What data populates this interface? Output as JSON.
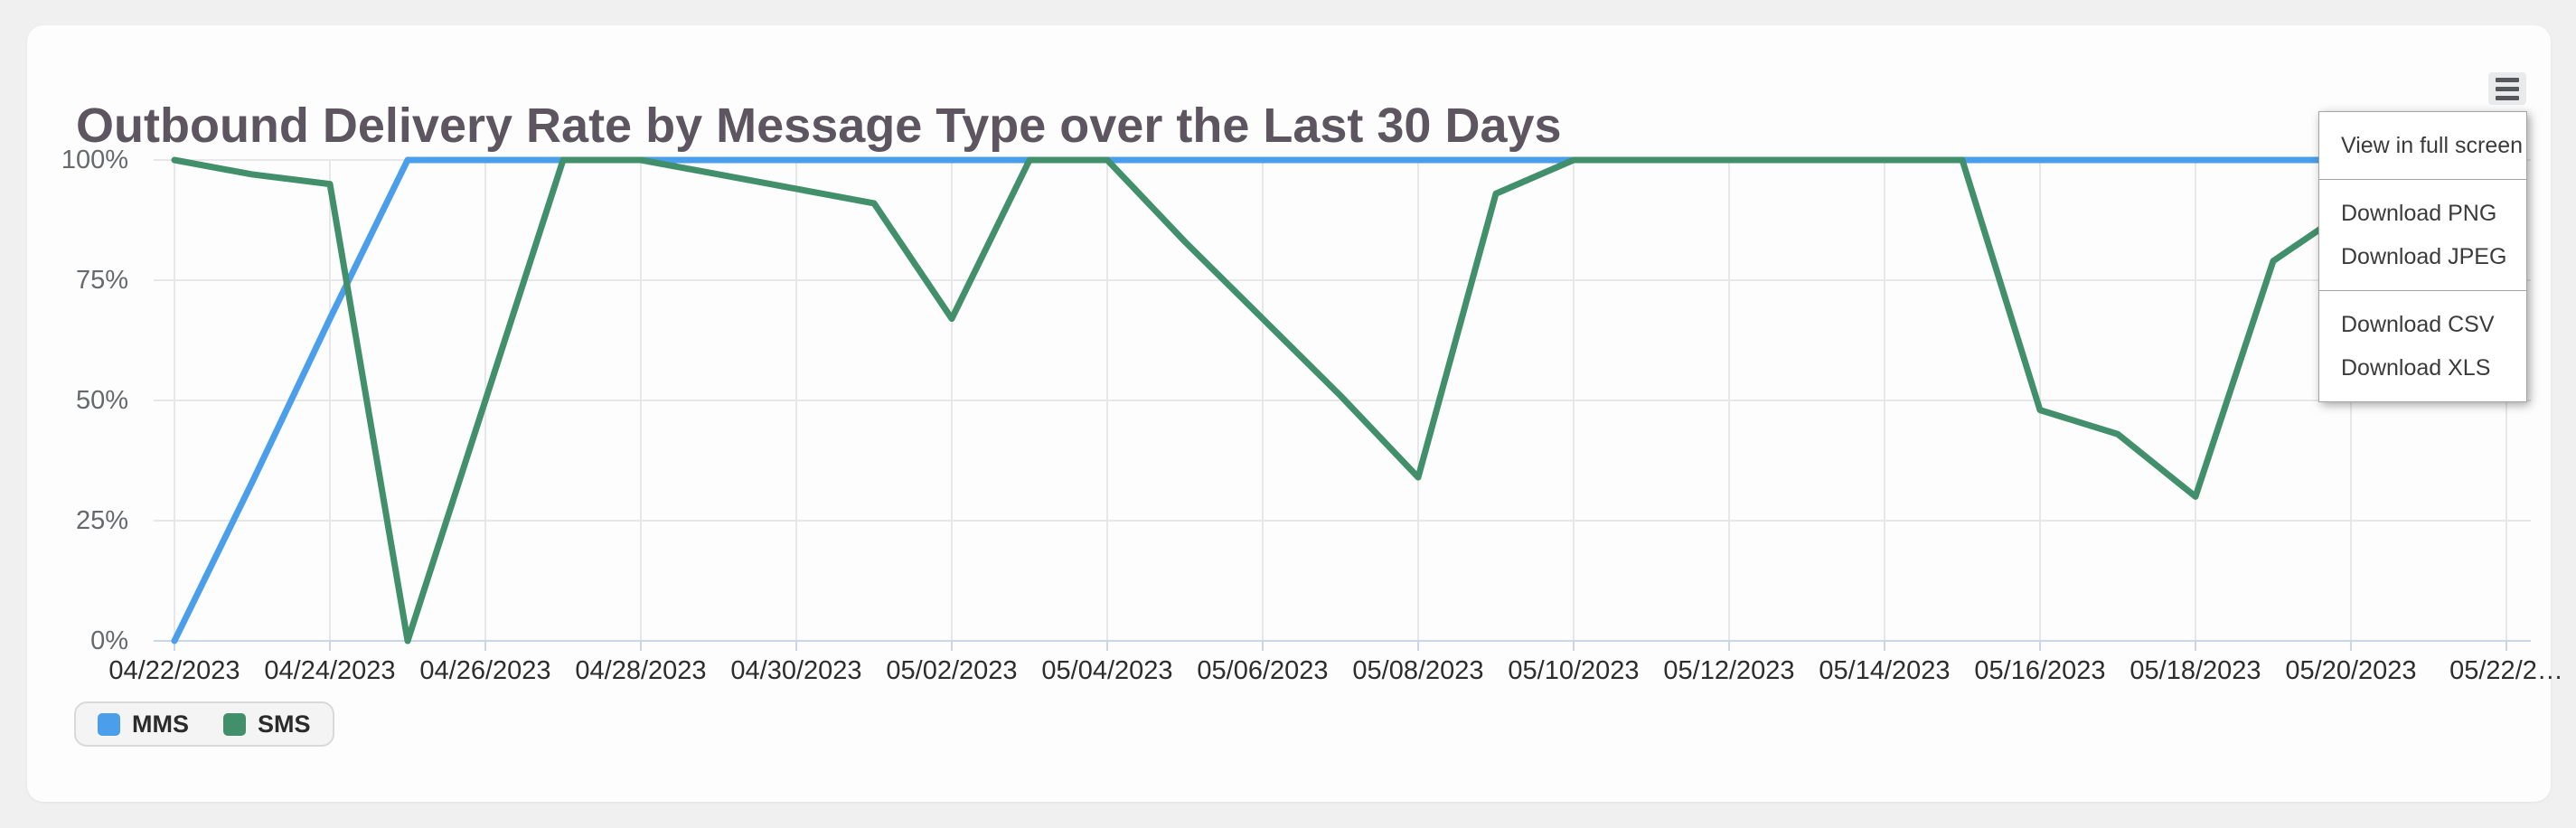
{
  "page": {
    "background_color": "#f0f0f1",
    "card_background_color": "#fdfdfd"
  },
  "header": {
    "title": "Outbound Delivery Rate by Message Type over the Last 30 Days",
    "title_color": "#5d5660"
  },
  "export_menu": {
    "button_icon": "hamburger-icon",
    "sections": [
      [
        "View in full screen"
      ],
      [
        "Download PNG",
        "Download JPEG"
      ],
      [
        "Download CSV",
        "Download XLS"
      ]
    ]
  },
  "legend": {
    "items": [
      {
        "label": "MMS",
        "color": "#4b9ee9"
      },
      {
        "label": "SMS",
        "color": "#42906b"
      }
    ]
  },
  "chart_data": {
    "type": "line",
    "title": "Outbound Delivery Rate by Message Type over the Last 30 Days",
    "xlabel": "",
    "ylabel": "",
    "ylim": [
      0,
      100
    ],
    "grid": true,
    "legend_position": "bottom-left",
    "y_ticks": [
      {
        "value": 0,
        "label": "0%"
      },
      {
        "value": 25,
        "label": "25%"
      },
      {
        "value": 50,
        "label": "50%"
      },
      {
        "value": 75,
        "label": "75%"
      },
      {
        "value": 100,
        "label": "100%"
      }
    ],
    "x_tick_labels": [
      "04/22/2023",
      "04/24/2023",
      "04/26/2023",
      "04/28/2023",
      "04/30/2023",
      "05/02/2023",
      "05/04/2023",
      "05/06/2023",
      "05/08/2023",
      "05/10/2023",
      "05/12/2023",
      "05/14/2023",
      "05/16/2023",
      "05/18/2023",
      "05/20/2023",
      "05/22/2…"
    ],
    "categories": [
      "04/22/2023",
      "04/23/2023",
      "04/24/2023",
      "04/25/2023",
      "04/26/2023",
      "04/27/2023",
      "04/28/2023",
      "04/29/2023",
      "04/30/2023",
      "05/01/2023",
      "05/02/2023",
      "05/03/2023",
      "05/04/2023",
      "05/05/2023",
      "05/06/2023",
      "05/07/2023",
      "05/08/2023",
      "05/09/2023",
      "05/10/2023",
      "05/11/2023",
      "05/12/2023",
      "05/13/2023",
      "05/14/2023",
      "05/15/2023",
      "05/16/2023",
      "05/17/2023",
      "05/18/2023",
      "05/19/2023",
      "05/20/2023",
      "05/21/2023",
      "05/22/2023"
    ],
    "series": [
      {
        "name": "MMS",
        "color": "#4b9ee9",
        "values": [
          0,
          33,
          67,
          100,
          100,
          100,
          100,
          100,
          100,
          100,
          100,
          100,
          100,
          100,
          100,
          100,
          100,
          100,
          100,
          100,
          100,
          100,
          100,
          100,
          100,
          100,
          100,
          100,
          100,
          100,
          100
        ]
      },
      {
        "name": "SMS",
        "color": "#42906b",
        "values": [
          100,
          97,
          95,
          0,
          50,
          100,
          100,
          97,
          94,
          91,
          67,
          100,
          100,
          83,
          67,
          51,
          34,
          93,
          100,
          100,
          100,
          100,
          100,
          100,
          48,
          43,
          30,
          79,
          90,
          100,
          100
        ]
      }
    ],
    "style": {
      "gridline_color": "#e7e7e7",
      "axis_line_color": "#ccd6eb",
      "x_label_color": "#2d2d2d",
      "y_label_color": "#66696c"
    }
  }
}
